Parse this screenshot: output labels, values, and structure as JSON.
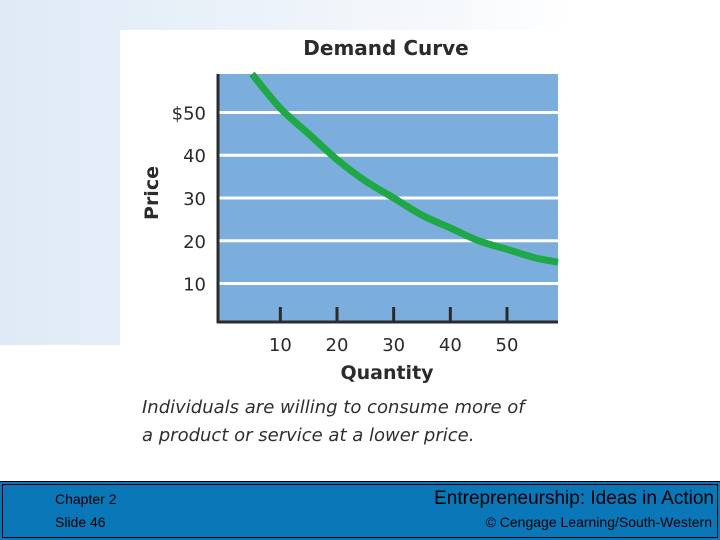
{
  "slide": {
    "caption_line1": "Individuals are willing to consume more of",
    "caption_line2": "a product or service at a lower price."
  },
  "footer": {
    "chapter": "Chapter 2",
    "slide": "Slide 46",
    "book_title": "Entrepreneurship: Ideas in Action",
    "copyright": "© Cengage Learning/South-Western"
  },
  "chart_data": {
    "type": "line",
    "title": "Demand Curve",
    "xlabel": "Quantity",
    "ylabel": "Price",
    "x_ticks": [
      10,
      20,
      30,
      40,
      50
    ],
    "x_tick_labels": [
      "10",
      "20",
      "30",
      "40",
      "50"
    ],
    "y_ticks": [
      10,
      20,
      30,
      40,
      50
    ],
    "y_tick_labels": [
      "10",
      "20",
      "30",
      "40",
      "$50"
    ],
    "xlim": [
      -1,
      59
    ],
    "ylim": [
      1,
      59
    ],
    "grid": "horizontal",
    "plot_background": "#7baedc",
    "gridline_color": "#ffffff",
    "series": [
      {
        "color": "#1fa846",
        "x": [
          5,
          10,
          15,
          20,
          25,
          30,
          35,
          40,
          45,
          50,
          55,
          59
        ],
        "y": [
          59,
          51,
          45,
          39,
          34,
          30,
          26,
          23,
          20,
          18,
          16,
          15
        ]
      }
    ]
  }
}
